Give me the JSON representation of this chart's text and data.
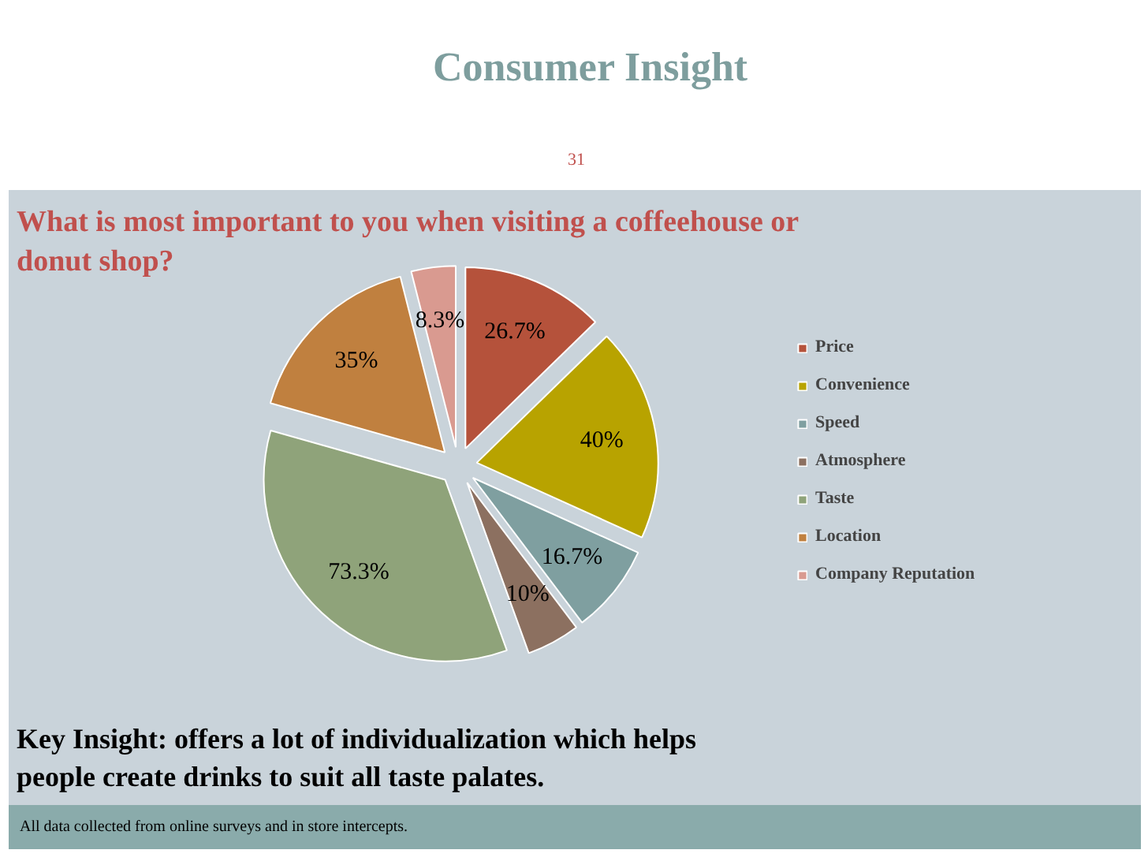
{
  "chart_data": {
    "type": "pie",
    "title": "Consumer Insight",
    "subtitle": "What is most important to you when visiting a coffeehouse or donut shop?",
    "categories": [
      "Price",
      "Convenience",
      "Speed",
      "Atmosphere",
      "Taste",
      "Location",
      "Company Reputation"
    ],
    "values": [
      26.7,
      40,
      16.7,
      10,
      73.3,
      35,
      8.3
    ],
    "value_labels": [
      "26.7%",
      "40%",
      "16.7%",
      "10%",
      "73.3%",
      "35%",
      "8.3%"
    ],
    "colors": [
      "#b5523b",
      "#b8a300",
      "#7f9fa0",
      "#8c7060",
      "#8fa37a",
      "#c0803f",
      "#d99a90"
    ],
    "legend": "right",
    "annotations": [
      "31",
      "Key Insight: offers a lot of individualization which helps people create drinks to suit all taste palates.",
      "All data collected from online surveys and in store intercepts."
    ]
  }
}
